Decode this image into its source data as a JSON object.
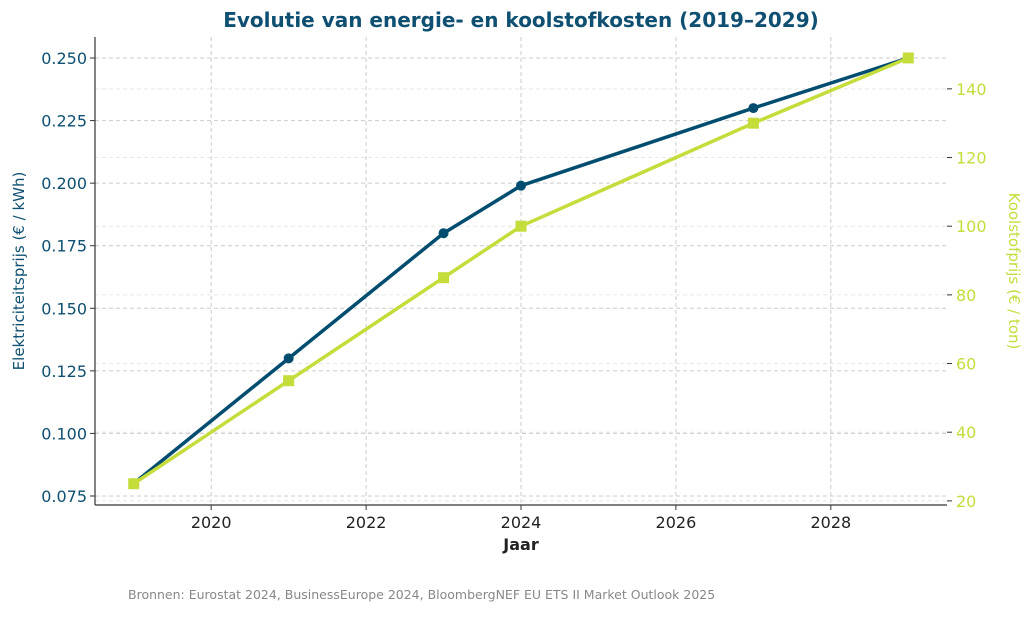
{
  "chart_data": {
    "type": "line",
    "title": "Evolutie van energie- en koolstofkosten (2019–2029)",
    "xlabel": "Jaar",
    "ylabel_left": "Elektriciteitsprijs (€ / kWh)",
    "ylabel_right": "Koolstofprijs (€ / ton)",
    "source": "Bronnen: Eurostat 2024, BusinessEurope 2024, BloombergNEF EU ETS II Market Outlook 2025",
    "xlim": [
      2018.5,
      2029.5
    ],
    "ylim_left": [
      0.0714,
      0.2584
    ],
    "ylim_right": [
      18.8,
      155.1
    ],
    "x_ticks": [
      2020,
      2022,
      2024,
      2026,
      2028
    ],
    "y_ticks_left": [
      "0.075",
      "0.100",
      "0.125",
      "0.150",
      "0.175",
      "0.200",
      "0.225",
      "0.250"
    ],
    "y_ticks_right": [
      20,
      40,
      60,
      80,
      100,
      120,
      140
    ],
    "grid": true,
    "series": [
      {
        "axis": "left",
        "color": "#004d70",
        "marker": "circle",
        "x": [
          2019,
          2021,
          2023,
          2024,
          2027,
          2029
        ],
        "y": [
          0.08,
          0.13,
          0.18,
          0.199,
          0.23,
          0.25
        ]
      },
      {
        "axis": "right",
        "color": "#c5dc3a",
        "marker": "square",
        "x": [
          2019,
          2021,
          2023,
          2024,
          2027,
          2029
        ],
        "y": [
          25,
          55,
          85,
          100,
          130,
          149
        ]
      }
    ],
    "colors": {
      "title": "#0e4f72",
      "left_axis": "#0e4f72",
      "right_axis": "#c5dc3a"
    }
  }
}
